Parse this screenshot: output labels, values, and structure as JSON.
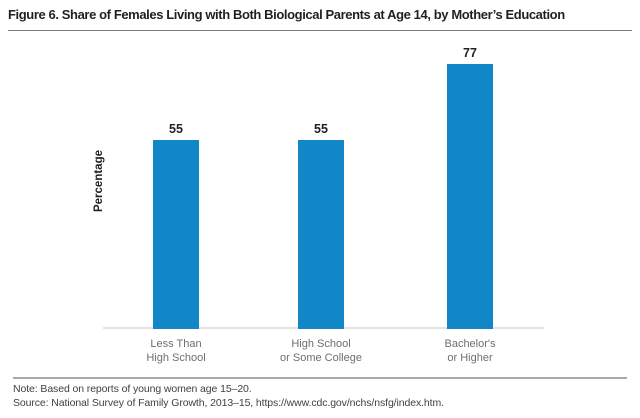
{
  "title": "Figure 6. Share of Females Living with Both Biological Parents at Age 14, by Mother’s Education",
  "chart_data": {
    "type": "bar",
    "title": "Figure 6. Share of Females Living with Both Biological Parents at Age 14, by Mother’s Education",
    "categories": [
      "Less Than High School",
      "High School or Some College",
      "Bachelor's or Higher"
    ],
    "categories_display": [
      "Less Than\nHigh School",
      "High School\nor Some College",
      "Bachelor's\nor Higher"
    ],
    "values": [
      55,
      55,
      77
    ],
    "value_labels": [
      "55",
      "55",
      "77"
    ],
    "xlabel": "",
    "ylabel": "Percentage",
    "ylim": [
      0,
      84
    ],
    "grid": false,
    "legend": false,
    "bar_color": "#1287c8"
  },
  "note": "Note: Based on reports of young women age 15–20.",
  "source": "Source: National Survey of Family Growth, 2013–15, https://www.cdc.gov/nchs/nsfg/index.htm."
}
